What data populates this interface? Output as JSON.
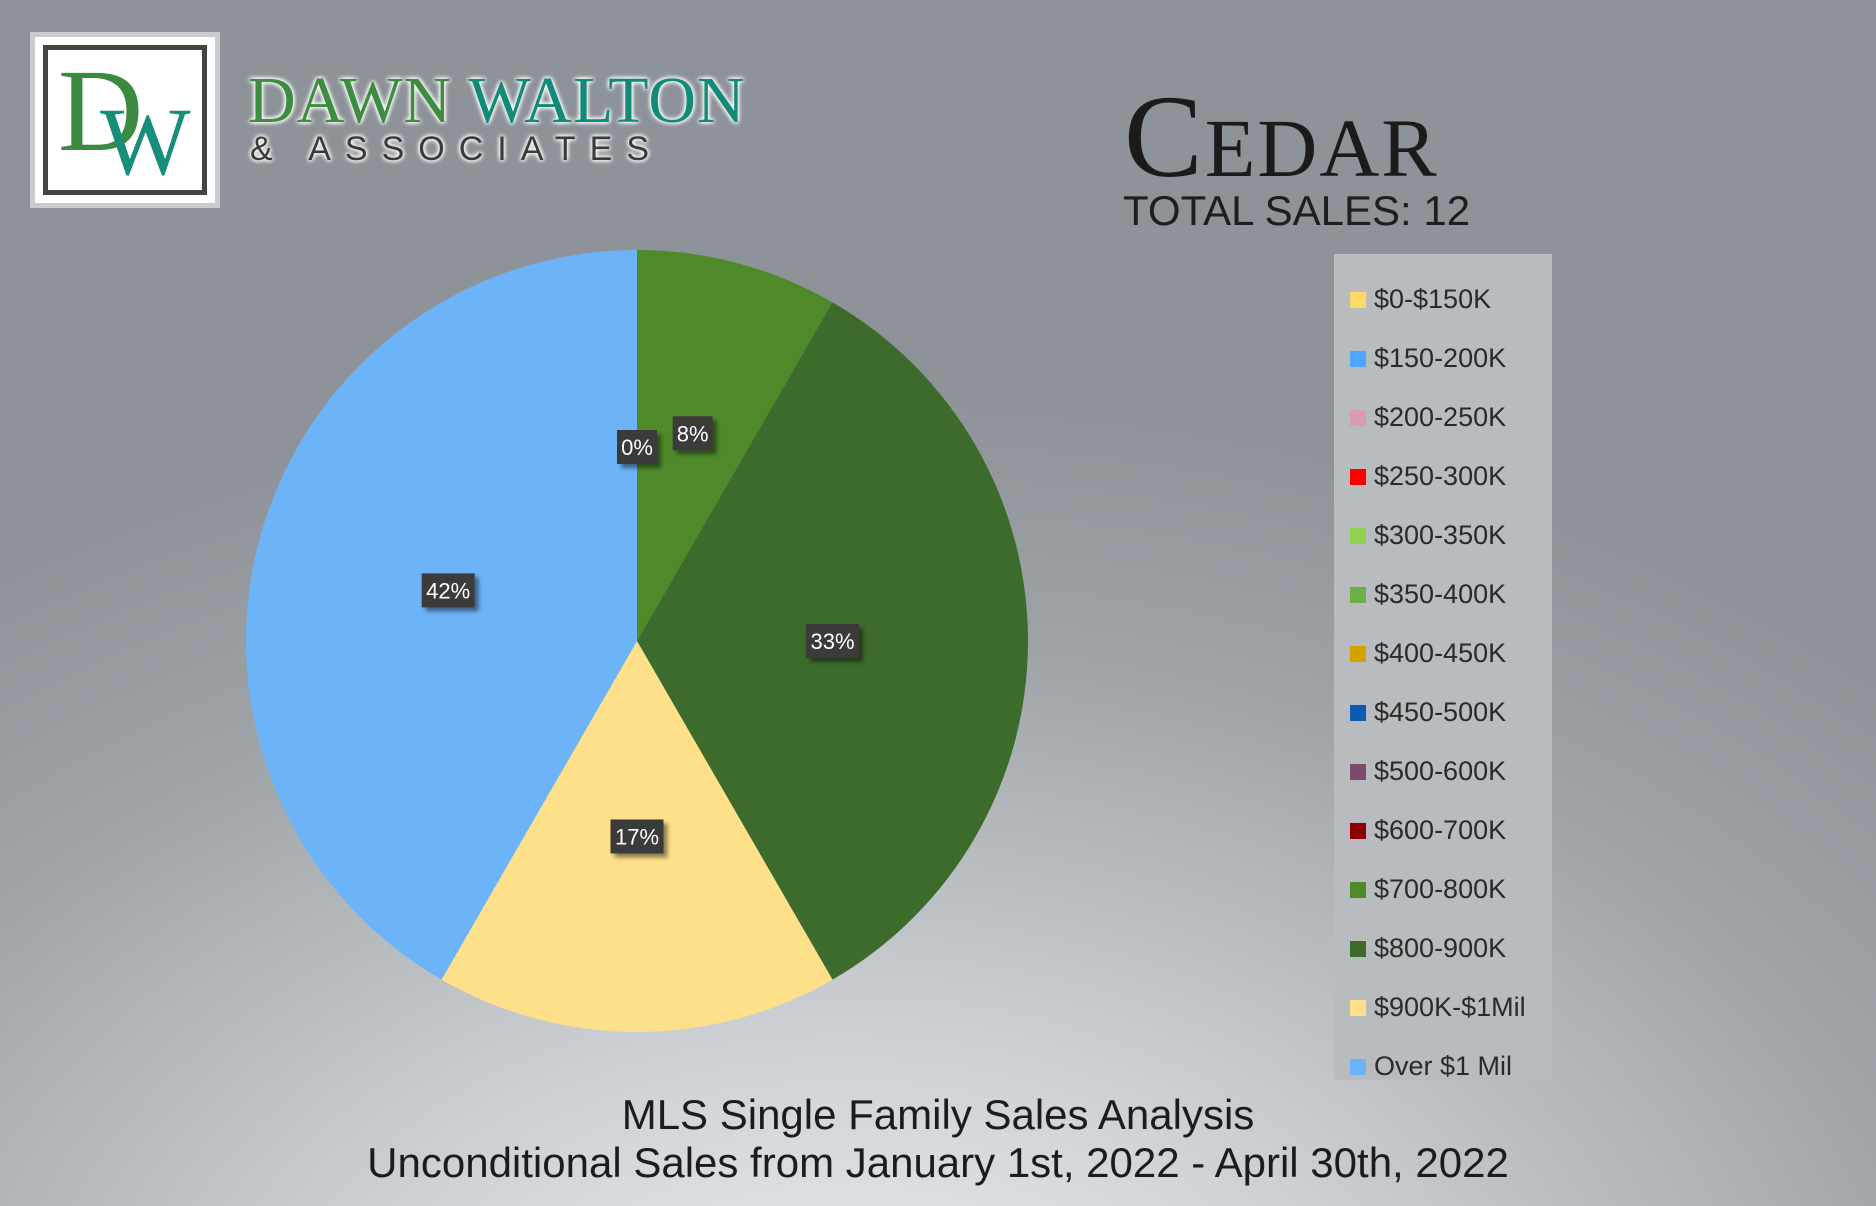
{
  "brand": {
    "logo_letters": "DW",
    "name_part1": "DAWN",
    "name_part2": "WALTON",
    "subtitle": "& ASSOCIATES"
  },
  "header": {
    "title": "Cedar",
    "total_sales": "TOTAL SALES: 12"
  },
  "footer": {
    "line1": "MLS Single Family Sales Analysis",
    "line2": "Unconditional Sales from January 1st, 2022 - April 30th, 2022"
  },
  "chart_data": {
    "type": "pie",
    "legend_position": "right",
    "categories": [
      "$0-$150K",
      "$150-200K",
      "$200-250K",
      "$250-300K",
      "$300-350K",
      "$350-400K",
      "$400-450K",
      "$450-500K",
      "$500-600K",
      "$600-700K",
      "$700-800K",
      "$800-900K",
      "$900K-$1Mil",
      "Over $1 Mil"
    ],
    "colors": [
      "#ffd966",
      "#4da6ff",
      "#d59cb8",
      "#ff0000",
      "#92d050",
      "#70ad47",
      "#d6a100",
      "#0a5bb5",
      "#7b4a6e",
      "#8b0000",
      "#4f8a2a",
      "#3d6b2c",
      "#ffe08a",
      "#6db3f8"
    ],
    "values": [
      0,
      0,
      0,
      0,
      0,
      0,
      0,
      0,
      0,
      0,
      1,
      4,
      2,
      5
    ],
    "slice_labels": [
      {
        "category": "$0-$150K",
        "text": "0%"
      },
      {
        "category": "$700-800K",
        "text": "8%"
      },
      {
        "category": "$800-900K",
        "text": "33%"
      },
      {
        "category": "$900K-$1Mil",
        "text": "17%"
      },
      {
        "category": "Over $1 Mil",
        "text": "42%"
      }
    ]
  }
}
